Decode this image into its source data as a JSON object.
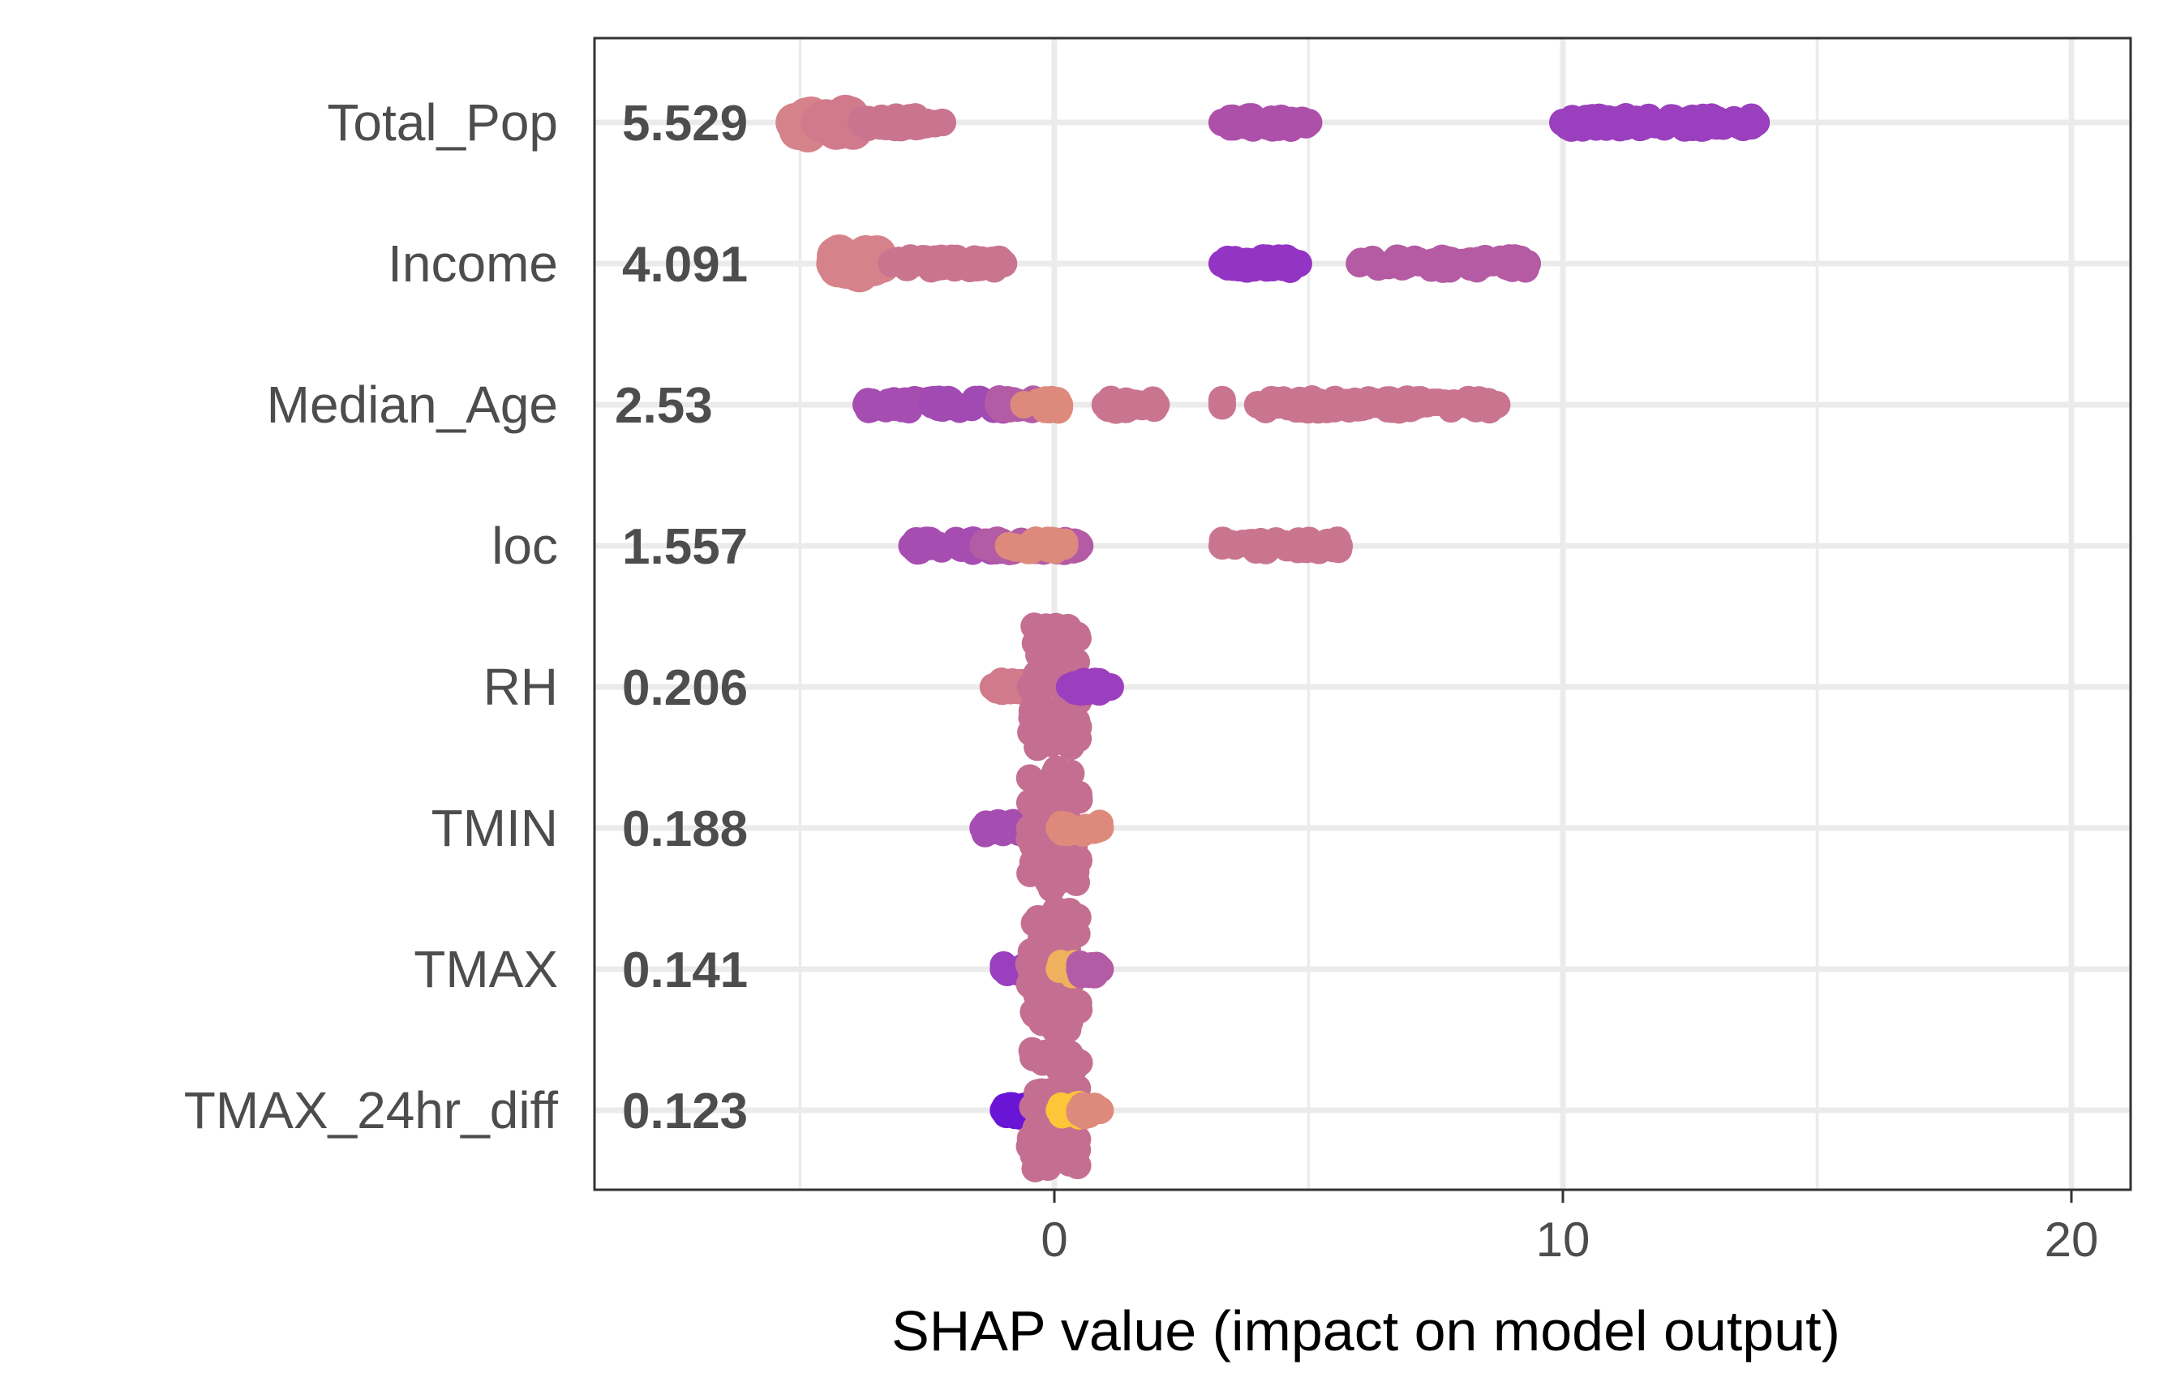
{
  "chart_data": {
    "type": "scatter",
    "title": "",
    "xlabel": "SHAP value (impact on model output)",
    "ylabel": "",
    "xlim": [
      -9.1,
      21
    ],
    "xticks": [
      0,
      10,
      20
    ],
    "grid": true,
    "colors": {
      "low": "#6a14d6",
      "mid": "#c46f91",
      "high": "#fdc638",
      "purple": "#9a3fbd",
      "pink": "#ca7590",
      "salmon": "#dd8a7d"
    },
    "features": [
      {
        "name": "Total_Pop",
        "mean_abs_shap": "5.529",
        "clusters": [
          {
            "x_min": -5.1,
            "x_max": -4.7,
            "color": "#d6828a",
            "size": "large"
          },
          {
            "x_min": -4.6,
            "x_max": -3.9,
            "color": "#d17a8c",
            "size": "large"
          },
          {
            "x_min": -3.8,
            "x_max": -2.2,
            "color": "#ca7590",
            "size": "medium"
          },
          {
            "x_min": 3.3,
            "x_max": 5.0,
            "color": "#ad50aa",
            "size": "medium"
          },
          {
            "x_min": 10.0,
            "x_max": 13.8,
            "color": "#9a3fbd",
            "size": "medium"
          }
        ]
      },
      {
        "name": "Income",
        "mean_abs_shap": "4.091",
        "clusters": [
          {
            "x_min": -4.3,
            "x_max": -3.4,
            "color": "#d6828a",
            "size": "large"
          },
          {
            "x_min": -3.2,
            "x_max": -1.0,
            "color": "#ca7590",
            "size": "medium"
          },
          {
            "x_min": 3.3,
            "x_max": 4.8,
            "color": "#9334c4",
            "size": "medium"
          },
          {
            "x_min": 6.0,
            "x_max": 9.3,
            "color": "#b45ba3",
            "size": "medium"
          }
        ]
      },
      {
        "name": "Median_Age",
        "mean_abs_shap": "2.53",
        "clusters": [
          {
            "x_min": -3.7,
            "x_max": -2.3,
            "color": "#a64db1",
            "size": "medium"
          },
          {
            "x_min": -2.4,
            "x_max": -0.6,
            "color": "#a24ab3",
            "size": "medium"
          },
          {
            "x_min": -1.1,
            "x_max": -0.1,
            "color": "#b35ba4",
            "size": "medium"
          },
          {
            "x_min": -0.6,
            "x_max": 0.1,
            "color": "#dd8a7d",
            "size": "medium"
          },
          {
            "x_min": 1.0,
            "x_max": 2.0,
            "color": "#ca7590",
            "size": "medium"
          },
          {
            "x_min": 3.3,
            "x_max": 3.3,
            "color": "#ca7590",
            "size": "medium"
          },
          {
            "x_min": 4.0,
            "x_max": 8.7,
            "color": "#ca7590",
            "size": "medium"
          }
        ]
      },
      {
        "name": "loc",
        "mean_abs_shap": "1.557",
        "clusters": [
          {
            "x_min": -2.8,
            "x_max": -0.9,
            "color": "#a64db1",
            "size": "medium"
          },
          {
            "x_min": -1.4,
            "x_max": 0.5,
            "color": "#b35ba4",
            "size": "medium"
          },
          {
            "x_min": -0.9,
            "x_max": 0.2,
            "color": "#dd8a7d",
            "size": "medium"
          },
          {
            "x_min": 3.3,
            "x_max": 5.6,
            "color": "#ca7590",
            "size": "medium"
          }
        ]
      },
      {
        "name": "RH",
        "mean_abs_shap": "0.206",
        "clusters": [
          {
            "x_min": -1.2,
            "x_max": 0.3,
            "color": "#d17a8c",
            "size": "medium"
          },
          {
            "x_min": -0.5,
            "x_max": 0.5,
            "color": "#c46f91",
            "size": "medium",
            "stack": true
          },
          {
            "x_min": 0.3,
            "x_max": 1.1,
            "color": "#9a3fbd",
            "size": "medium"
          }
        ]
      },
      {
        "name": "TMIN",
        "mean_abs_shap": "0.188",
        "clusters": [
          {
            "x_min": -1.4,
            "x_max": -0.6,
            "color": "#a64db1",
            "size": "medium"
          },
          {
            "x_min": -0.5,
            "x_max": 0.5,
            "color": "#c46f91",
            "size": "medium",
            "stack": true
          },
          {
            "x_min": 0.1,
            "x_max": 0.9,
            "color": "#dd8a7d",
            "size": "medium"
          }
        ]
      },
      {
        "name": "TMAX",
        "mean_abs_shap": "0.141",
        "clusters": [
          {
            "x_min": -1.0,
            "x_max": -0.4,
            "color": "#9a3fbd",
            "size": "medium"
          },
          {
            "x_min": -0.5,
            "x_max": 0.5,
            "color": "#c46f91",
            "size": "medium",
            "stack": true
          },
          {
            "x_min": 0.1,
            "x_max": 0.6,
            "color": "#f0b15f",
            "size": "medium"
          },
          {
            "x_min": 0.5,
            "x_max": 0.9,
            "color": "#b35ba4",
            "size": "medium"
          }
        ]
      },
      {
        "name": "TMAX_24hr_diff",
        "mean_abs_shap": "0.123",
        "clusters": [
          {
            "x_min": -1.0,
            "x_max": -0.5,
            "color": "#6a14d6",
            "size": "medium"
          },
          {
            "x_min": -0.5,
            "x_max": 0.5,
            "color": "#c46f91",
            "size": "medium",
            "stack": true
          },
          {
            "x_min": 0.1,
            "x_max": 0.5,
            "color": "#fdc638",
            "size": "medium"
          },
          {
            "x_min": 0.5,
            "x_max": 0.9,
            "color": "#dd8a7d",
            "size": "medium"
          }
        ]
      }
    ]
  }
}
